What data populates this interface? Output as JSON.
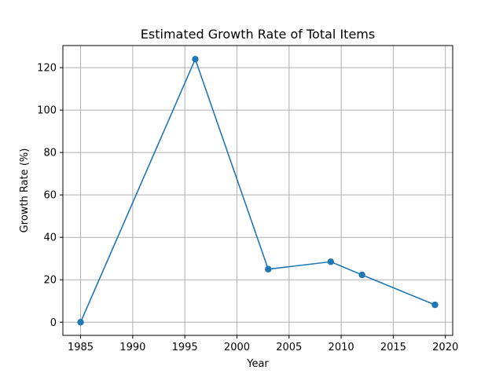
{
  "chart_data": {
    "type": "line",
    "title": "Estimated Growth Rate of Total Items",
    "xlabel": "Year",
    "ylabel": "Growth Rate (%)",
    "xlim": [
      1983.3,
      2020.7
    ],
    "ylim": [
      -6.2,
      130.4
    ],
    "xticks": [
      1985,
      1990,
      1995,
      2000,
      2005,
      2010,
      2015,
      2020
    ],
    "yticks": [
      0,
      20,
      40,
      60,
      80,
      100,
      120
    ],
    "grid": true,
    "series": [
      {
        "color": "#1f77b4",
        "marker": "circle",
        "x": [
          1985,
          1996,
          2003,
          2009,
          2012,
          2019
        ],
        "y": [
          0,
          124,
          25,
          28.5,
          22.3,
          8.2
        ]
      }
    ]
  }
}
